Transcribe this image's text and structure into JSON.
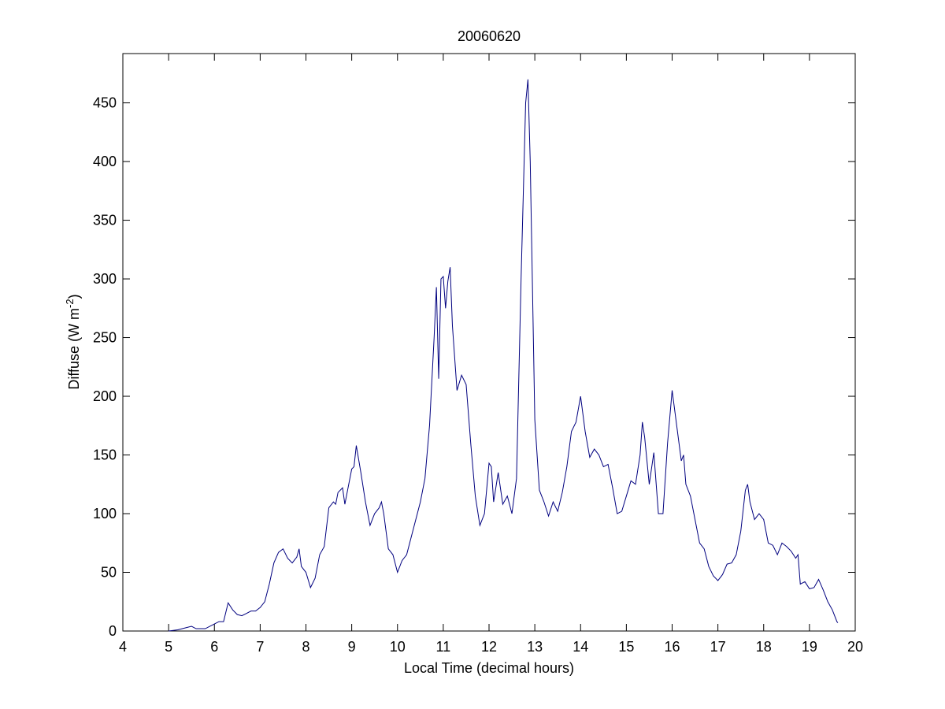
{
  "chart_data": {
    "type": "line",
    "title": "20060620",
    "xlabel": "Local Time (decimal hours)",
    "ylabel": [
      "Diffuse (W m",
      "-2",
      ")"
    ],
    "xlim": [
      4,
      20
    ],
    "xticks": [
      4,
      5,
      6,
      7,
      8,
      9,
      10,
      11,
      12,
      13,
      14,
      15,
      16,
      17,
      18,
      19,
      20
    ],
    "ylim": [
      0,
      492
    ],
    "yticks": [
      0,
      50,
      100,
      150,
      200,
      250,
      300,
      350,
      400,
      450
    ],
    "series": [
      {
        "color": "#00007f",
        "x": [
          5.0,
          5.2,
          5.4,
          5.5,
          5.6,
          5.8,
          6.0,
          6.1,
          6.2,
          6.3,
          6.4,
          6.5,
          6.6,
          6.7,
          6.8,
          6.9,
          7.0,
          7.1,
          7.2,
          7.3,
          7.4,
          7.5,
          7.6,
          7.7,
          7.8,
          7.85,
          7.9,
          8.0,
          8.1,
          8.2,
          8.3,
          8.4,
          8.5,
          8.6,
          8.65,
          8.7,
          8.8,
          8.85,
          8.9,
          9.0,
          9.05,
          9.1,
          9.2,
          9.3,
          9.4,
          9.5,
          9.6,
          9.65,
          9.7,
          9.8,
          9.9,
          10.0,
          10.1,
          10.2,
          10.3,
          10.4,
          10.5,
          10.6,
          10.7,
          10.8,
          10.85,
          10.9,
          10.95,
          11.0,
          11.05,
          11.1,
          11.15,
          11.2,
          11.3,
          11.4,
          11.5,
          11.6,
          11.7,
          11.8,
          11.9,
          12.0,
          12.05,
          12.1,
          12.2,
          12.3,
          12.4,
          12.5,
          12.6,
          12.7,
          12.8,
          12.85,
          12.9,
          13.0,
          13.1,
          13.2,
          13.3,
          13.4,
          13.5,
          13.6,
          13.7,
          13.8,
          13.9,
          14.0,
          14.1,
          14.2,
          14.3,
          14.4,
          14.5,
          14.6,
          14.7,
          14.8,
          14.9,
          15.0,
          15.1,
          15.2,
          15.3,
          15.35,
          15.4,
          15.5,
          15.6,
          15.7,
          15.8,
          15.9,
          16.0,
          16.1,
          16.2,
          16.25,
          16.3,
          16.4,
          16.5,
          16.6,
          16.7,
          16.8,
          16.9,
          17.0,
          17.1,
          17.2,
          17.3,
          17.4,
          17.5,
          17.6,
          17.65,
          17.7,
          17.8,
          17.9,
          18.0,
          18.1,
          18.2,
          18.3,
          18.4,
          18.5,
          18.6,
          18.7,
          18.75,
          18.8,
          18.9,
          19.0,
          19.1,
          19.2,
          19.3,
          19.4,
          19.5,
          19.6,
          19.62
        ],
        "values": [
          0,
          1,
          3,
          4,
          2,
          2,
          6,
          8,
          8,
          24,
          18,
          14,
          13,
          15,
          17,
          17,
          20,
          25,
          40,
          58,
          67,
          70,
          62,
          58,
          63,
          70,
          55,
          50,
          37,
          45,
          65,
          72,
          105,
          110,
          108,
          118,
          122,
          108,
          118,
          138,
          140,
          158,
          135,
          110,
          90,
          100,
          105,
          110,
          100,
          70,
          65,
          50,
          60,
          65,
          80,
          95,
          110,
          130,
          175,
          250,
          293,
          215,
          300,
          302,
          275,
          298,
          310,
          260,
          205,
          218,
          210,
          160,
          115,
          90,
          100,
          143,
          140,
          110,
          135,
          108,
          115,
          100,
          130,
          300,
          450,
          470,
          400,
          180,
          120,
          110,
          98,
          110,
          102,
          118,
          140,
          170,
          178,
          200,
          170,
          148,
          155,
          150,
          140,
          142,
          122,
          100,
          102,
          115,
          128,
          125,
          150,
          178,
          165,
          125,
          152,
          100,
          100,
          160,
          205,
          175,
          145,
          150,
          125,
          115,
          95,
          75,
          70,
          55,
          47,
          43,
          48,
          57,
          58,
          65,
          85,
          120,
          125,
          110,
          95,
          100,
          95,
          75,
          73,
          65,
          75,
          72,
          68,
          62,
          65,
          40,
          42,
          36,
          37,
          44,
          35,
          25,
          18,
          8,
          7
        ]
      }
    ]
  }
}
